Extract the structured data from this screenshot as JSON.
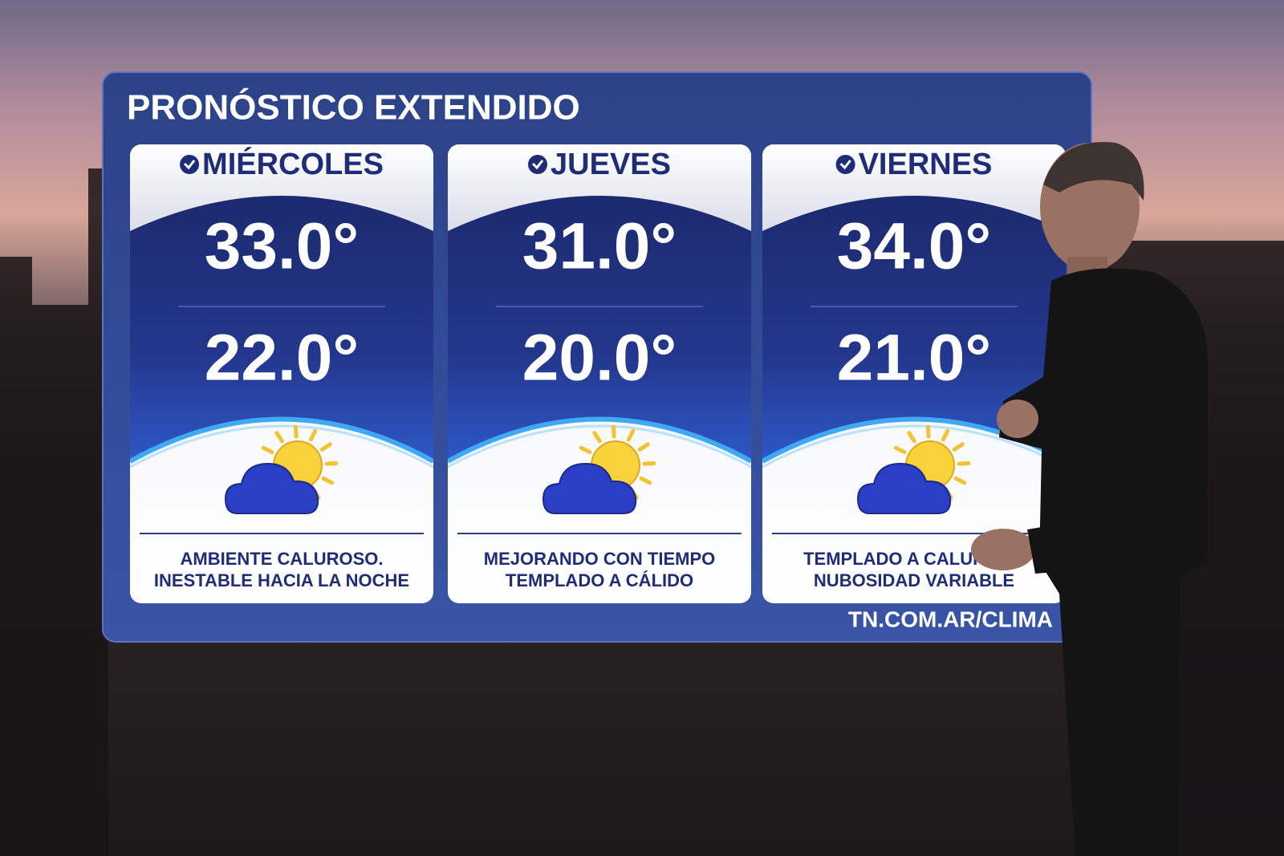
{
  "title": "PRONÓSTICO EXTENDIDO",
  "days": [
    {
      "name": "MIÉRCOLES",
      "high": "33.0°",
      "low": "22.0°",
      "description": [
        "AMBIENTE CALUROSO.",
        "INESTABLE HACIA LA NOCHE"
      ]
    },
    {
      "name": "JUEVES",
      "high": "31.0°",
      "low": "20.0°",
      "description": [
        "MEJORANDO CON TIEMPO",
        "TEMPLADO A CÁLIDO"
      ]
    },
    {
      "name": "VIERNES",
      "high": "34.0°",
      "low": "21.0°",
      "description": [
        "TEMPLADO A CALUROSO",
        "NUBOSIDAD VARIABLE"
      ]
    }
  ],
  "footer": "TN.COM.AR/CLIMA"
}
